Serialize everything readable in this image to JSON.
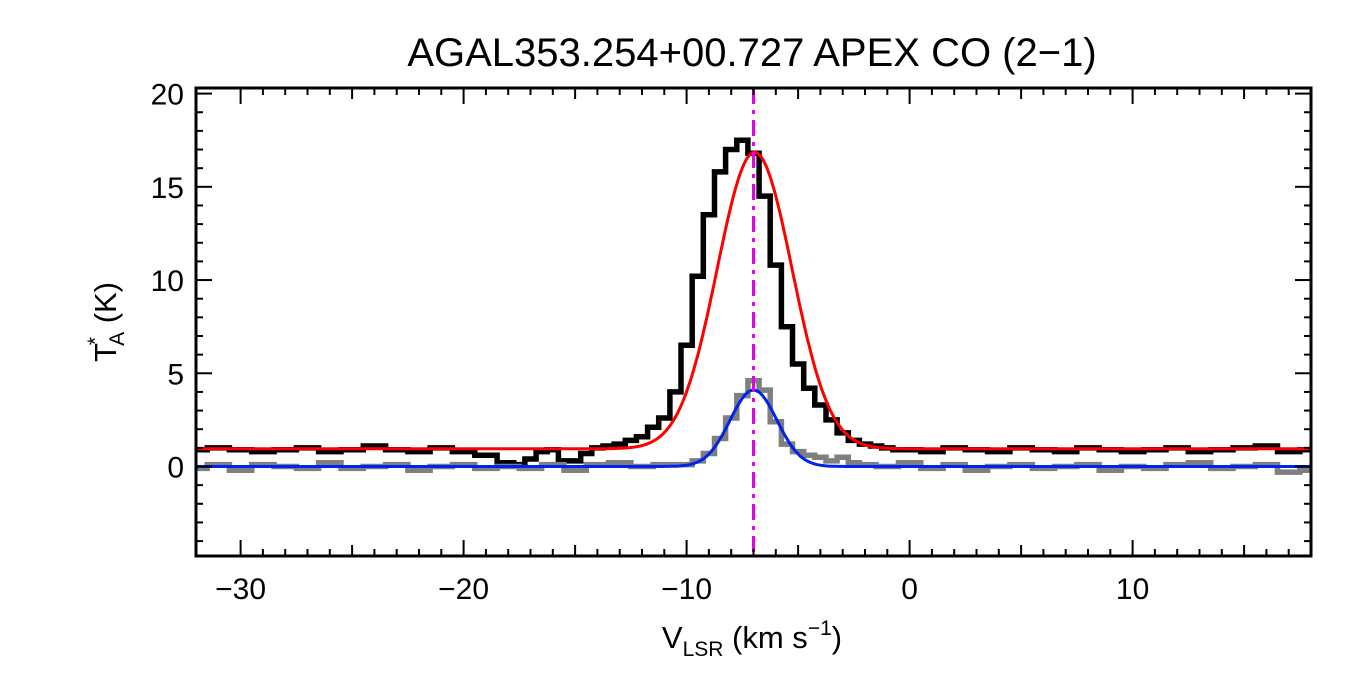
{
  "chart_data": {
    "type": "line",
    "title": "AGAL353.254+00.727  APEX CO (2−1)",
    "xlabel": {
      "main": "V",
      "sub": "LSR",
      "rest": " (km s",
      "sup": "−1",
      "end": ")"
    },
    "ylabel": {
      "main": "T",
      "sup": "*",
      "sub": "A",
      "rest": " (K)"
    },
    "xlim": [
      -32,
      18
    ],
    "ylim": [
      -4.8,
      20.3
    ],
    "x_ticks": [
      -30,
      -20,
      -10,
      0,
      10
    ],
    "x_tick_labels": [
      "−30",
      "−20",
      "−10",
      "0",
      "10"
    ],
    "y_ticks": [
      0,
      5,
      10,
      15,
      20
    ],
    "y_tick_labels": [
      "0",
      "5",
      "10",
      "15",
      "20"
    ],
    "grid": false,
    "vline": {
      "x": -7.0,
      "color": "#e600e6",
      "style": "dash-dot"
    },
    "series": [
      {
        "kind": "step",
        "color": "#000000",
        "x": [
          -32,
          -31,
          -30,
          -29,
          -28,
          -27,
          -26,
          -25,
          -24,
          -23,
          -22,
          -21,
          -20,
          -19,
          -18,
          -17.5,
          -17,
          -16.5,
          -16,
          -15.5,
          -15,
          -14.5,
          -14,
          -13.5,
          -13,
          -12.5,
          -12,
          -11.5,
          -11,
          -10.5,
          -10,
          -9.5,
          -9,
          -8.5,
          -8,
          -7.5,
          -7,
          -6.5,
          -6,
          -5.5,
          -5,
          -4.5,
          -4,
          -3.5,
          -3,
          -2.5,
          -2,
          -1.5,
          -1,
          -0.5,
          0,
          1,
          2,
          3,
          4,
          5,
          6,
          7,
          8,
          9,
          10,
          11,
          12,
          13,
          14,
          15,
          16,
          17,
          18
        ],
        "values": [
          0.9,
          1.0,
          0.9,
          0.8,
          0.9,
          1.0,
          0.8,
          0.9,
          1.1,
          0.9,
          0.8,
          1.0,
          0.8,
          0.6,
          0.2,
          0.1,
          0.4,
          0.8,
          0.9,
          0.3,
          0.3,
          0.7,
          1.0,
          1.1,
          1.2,
          1.4,
          1.6,
          2.1,
          2.6,
          4.0,
          6.5,
          10.2,
          13.5,
          15.8,
          17.0,
          17.5,
          16.8,
          14.5,
          10.8,
          7.5,
          5.5,
          4.2,
          3.3,
          2.5,
          1.8,
          1.4,
          1.2,
          1.1,
          1.0,
          0.9,
          0.9,
          0.8,
          1.0,
          0.9,
          0.8,
          1.0,
          0.9,
          0.8,
          1.0,
          0.9,
          0.8,
          0.9,
          1.0,
          0.8,
          0.9,
          1.0,
          1.1,
          0.8,
          0.9
        ]
      },
      {
        "kind": "step",
        "color": "#7f7f7f",
        "x": [
          -32,
          -31,
          -30,
          -29,
          -28,
          -27,
          -26,
          -25,
          -24,
          -23,
          -22,
          -21,
          -20,
          -19,
          -18,
          -17,
          -16,
          -15,
          -14,
          -13,
          -12,
          -11,
          -10,
          -9.5,
          -9,
          -8.5,
          -8,
          -7.5,
          -7,
          -6.5,
          -6,
          -5.5,
          -5,
          -4.5,
          -4,
          -3.5,
          -3,
          -2.5,
          -2,
          -1,
          0,
          1,
          2,
          3,
          4,
          5,
          6,
          7,
          8,
          9,
          10,
          11,
          12,
          13,
          14,
          15,
          16,
          17,
          18
        ],
        "values": [
          -0.1,
          0.1,
          -0.2,
          0.1,
          0.0,
          -0.1,
          0.2,
          -0.1,
          0.0,
          0.1,
          -0.2,
          0.0,
          0.1,
          -0.1,
          0.0,
          -0.1,
          0.1,
          -0.2,
          0.1,
          0.2,
          0.0,
          0.1,
          0.1,
          0.3,
          0.7,
          1.5,
          2.6,
          3.8,
          4.6,
          4.1,
          2.4,
          1.2,
          0.8,
          0.6,
          0.5,
          0.3,
          0.5,
          0.2,
          0.1,
          0.0,
          0.2,
          -0.1,
          0.1,
          -0.2,
          0.0,
          0.1,
          -0.1,
          0.0,
          0.1,
          -0.2,
          0.0,
          -0.1,
          0.1,
          0.2,
          -0.1,
          0.0,
          0.1,
          -0.3,
          -0.2
        ]
      },
      {
        "kind": "gaussian",
        "color": "#ff0000",
        "baseline": 0.95,
        "amplitude": 15.9,
        "center": -6.95,
        "sigma": 1.68
      },
      {
        "kind": "gaussian",
        "color": "#0022ee",
        "baseline": 0.0,
        "amplitude": 4.1,
        "center": -7.0,
        "sigma": 1.05
      }
    ]
  }
}
